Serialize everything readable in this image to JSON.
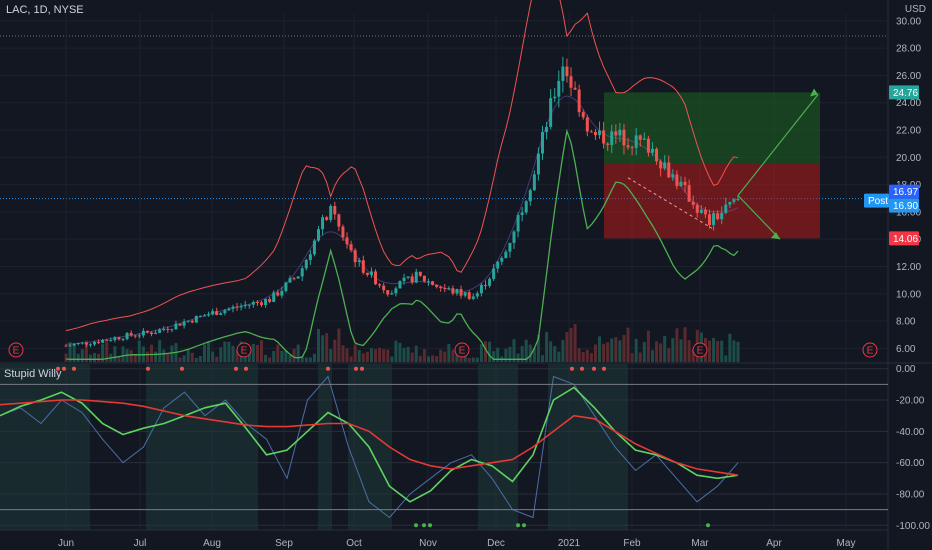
{
  "header": {
    "symbol_line": "LAC, 1D, NYSE",
    "currency": "USD",
    "indicator_name": "Stupid Willy"
  },
  "chart_data": [
    {
      "type": "candlestick",
      "title": "LAC, 1D, NYSE",
      "y_axis_ticks": [
        "30.00",
        "28.00",
        "26.00",
        "24.00",
        "22.00",
        "20.00",
        "18.00",
        "16.00",
        "14.00",
        "12.00",
        "10.00",
        "8.00",
        "6.00"
      ],
      "ylim": [
        5,
        30.5
      ],
      "x_axis_ticks": [
        "Jun",
        "Jul",
        "Aug",
        "Sep",
        "Oct",
        "Nov",
        "Dec",
        "2021",
        "Feb",
        "Mar",
        "Apr",
        "May"
      ],
      "price_labels": [
        {
          "text": "24.76",
          "value": 24.76,
          "color": "#26a69a"
        },
        {
          "text": "16.97",
          "value": 16.97,
          "color": "#2962ff"
        },
        {
          "text": "16.90",
          "value": 16.9,
          "color": "#2196f3"
        },
        {
          "text": "14.06",
          "value": 14.06,
          "color": "#f23645"
        }
      ],
      "post_label": "Post",
      "earnings_markers": [
        "E",
        "E",
        "E",
        "E",
        "E"
      ],
      "position_tool": {
        "target": 24.76,
        "entry": 19.5,
        "stop": 14.06
      },
      "price_series": [
        {
          "d": "Jun",
          "close": 6.2
        },
        {
          "d": "mid-Jun",
          "close": 6.5
        },
        {
          "d": "Jul",
          "close": 6.9
        },
        {
          "d": "mid-Jul",
          "close": 7.2
        },
        {
          "d": "Aug",
          "close": 7.9
        },
        {
          "d": "mid-Aug",
          "close": 8.6
        },
        {
          "d": "Sep",
          "close": 9.1
        },
        {
          "d": "mid-Sep",
          "close": 9.6
        },
        {
          "d": "late-Sep",
          "close": 11.5
        },
        {
          "d": "Oct",
          "close": 16.2
        },
        {
          "d": "mid-Oct",
          "close": 12.2
        },
        {
          "d": "Nov",
          "close": 10.2
        },
        {
          "d": "mid-Nov",
          "close": 11.3
        },
        {
          "d": "Dec",
          "close": 10.3
        },
        {
          "d": "mid-Dec",
          "close": 9.8
        },
        {
          "d": "late-Dec",
          "close": 12.8
        },
        {
          "d": "2021",
          "close": 18.8
        },
        {
          "d": "mid-Jan",
          "close": 27.0
        },
        {
          "d": "late-Jan",
          "close": 21.5
        },
        {
          "d": "Feb",
          "close": 21.5
        },
        {
          "d": "mid-Feb",
          "close": 20.8
        },
        {
          "d": "late-Feb",
          "close": 18.0
        },
        {
          "d": "Mar",
          "close": 15.2
        },
        {
          "d": "mid-Mar",
          "close": 16.9
        }
      ]
    },
    {
      "type": "line",
      "title": "Stupid Willy",
      "y_axis_ticks": [
        "0.00",
        "-20.00",
        "-40.00",
        "-60.00",
        "-80.00",
        "-100.00"
      ],
      "ylim": [
        -103,
        3
      ],
      "series": [
        {
          "color": "#4a6fa5",
          "values": [
            -30,
            -25,
            -35,
            -20,
            -28,
            -45,
            -60,
            -50,
            -25,
            -15,
            -30,
            -20,
            -35,
            -45,
            -70,
            -20,
            -5,
            -50,
            -85,
            -95,
            -80,
            -70,
            -60,
            -55,
            -70,
            -90,
            -95,
            -5,
            -10,
            -30,
            -50,
            -65,
            -55,
            -70,
            -85,
            -75,
            -60
          ]
        },
        {
          "color": "#5fd35f",
          "values": [
            -30,
            -24,
            -20,
            -15,
            -22,
            -35,
            -42,
            -38,
            -35,
            -30,
            -25,
            -22,
            -38,
            -55,
            -52,
            -40,
            -28,
            -35,
            -50,
            -75,
            -85,
            -78,
            -65,
            -58,
            -62,
            -72,
            -55,
            -20,
            -12,
            -25,
            -40,
            -52,
            -55,
            -60,
            -68,
            -70,
            -68
          ]
        },
        {
          "color": "#e53935",
          "values": [
            -23,
            -22,
            -21,
            -20,
            -20,
            -21,
            -22,
            -24,
            -27,
            -30,
            -32,
            -34,
            -36,
            -37,
            -37,
            -36,
            -35,
            -35,
            -40,
            -50,
            -58,
            -62,
            -64,
            -62,
            -60,
            -58,
            -50,
            -40,
            -30,
            -32,
            -40,
            -48,
            -54,
            -60,
            -64,
            -66,
            -68
          ]
        }
      ]
    }
  ]
}
